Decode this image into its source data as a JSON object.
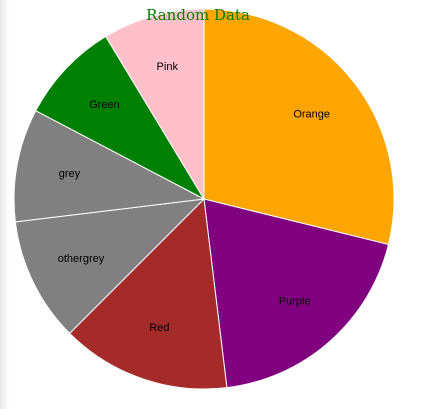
{
  "chart_data": {
    "type": "pie",
    "title": "Random Data",
    "title_color": "#008000",
    "slice_border_color": "#ffffff",
    "slices": [
      {
        "label": "Orange",
        "value": 30,
        "color": "#FFA500"
      },
      {
        "label": "Purple",
        "value": 20,
        "color": "#800080"
      },
      {
        "label": "Red",
        "value": 15,
        "color": "#A52A2A"
      },
      {
        "label": "othergrey",
        "value": 11,
        "color": "#808080"
      },
      {
        "label": "grey",
        "value": 10,
        "color": "#808080"
      },
      {
        "label": "Green",
        "value": 9,
        "color": "#008000"
      },
      {
        "label": "Pink",
        "value": 9,
        "color": "#FFC0CB"
      }
    ]
  }
}
